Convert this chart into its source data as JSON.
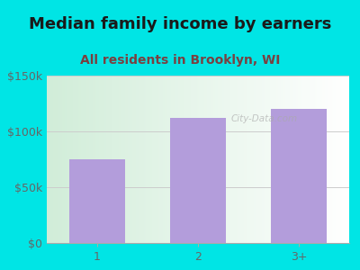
{
  "title": "Median family income by earners",
  "subtitle": "All residents in Brooklyn, WI",
  "categories": [
    "1",
    "2",
    "3+"
  ],
  "values": [
    75000,
    112000,
    120000
  ],
  "bar_color": "#b39ddb",
  "background_color": "#00e5e5",
  "title_color": "#1a1a1a",
  "subtitle_color": "#7a4040",
  "axis_color": "#666666",
  "ytick_labels": [
    "$0",
    "$50k",
    "$100k",
    "$150k"
  ],
  "ytick_values": [
    0,
    50000,
    100000,
    150000
  ],
  "ylim": [
    0,
    150000
  ],
  "watermark": "City-Data.com",
  "title_fontsize": 13,
  "subtitle_fontsize": 10,
  "tick_fontsize": 9
}
